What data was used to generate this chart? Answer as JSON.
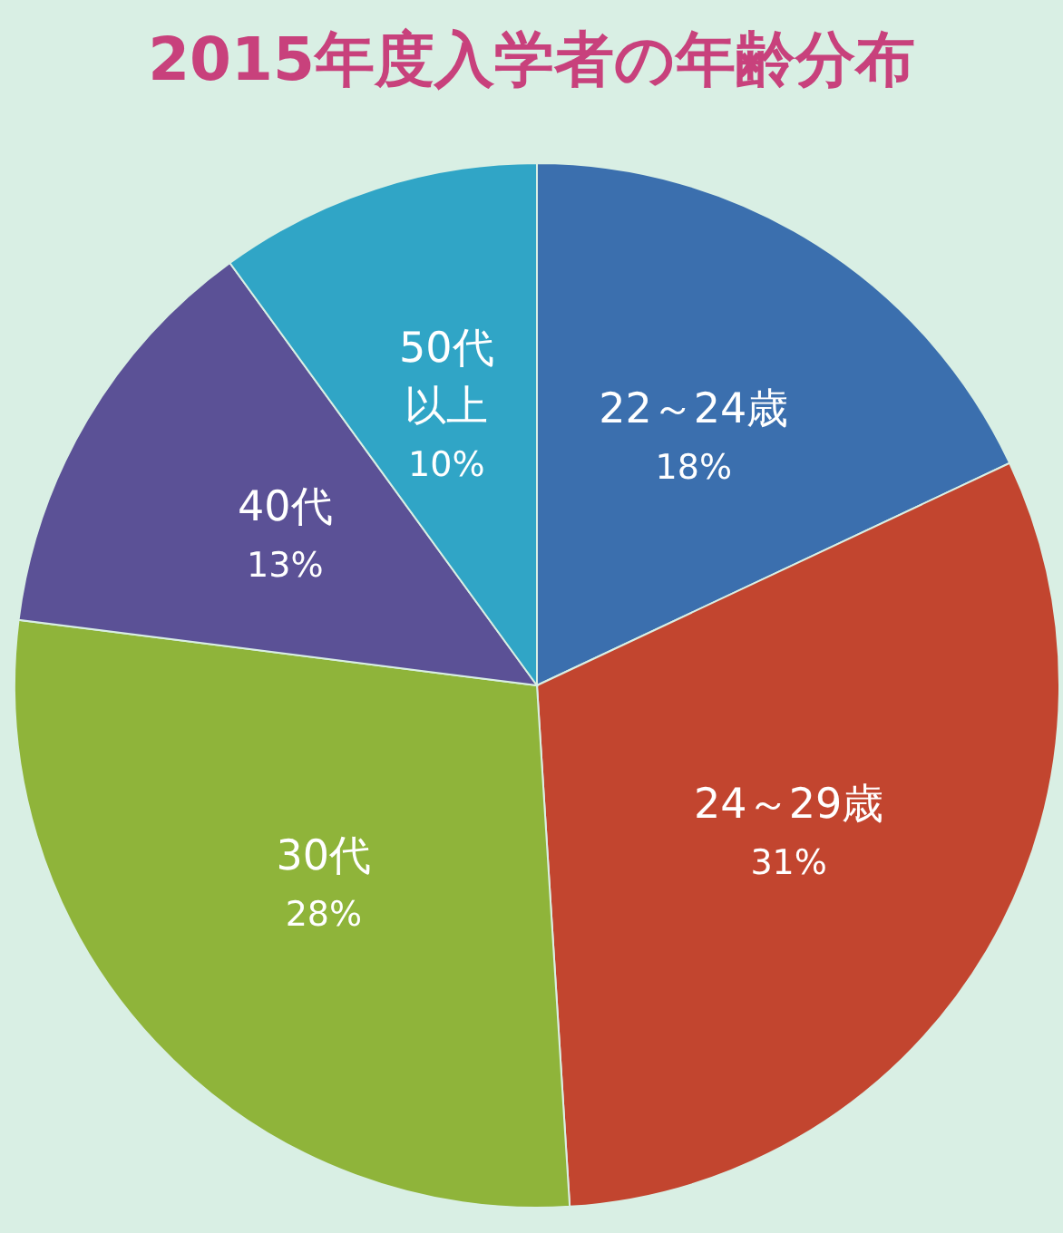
{
  "chart_data": {
    "type": "pie",
    "title": "2015年度入学者の年齢分布",
    "categories": [
      "22～24歳",
      "24～29歳",
      "30代",
      "40代",
      "50代以上"
    ],
    "values": [
      18,
      31,
      28,
      13,
      10
    ],
    "value_labels": [
      "18%",
      "31%",
      "28%",
      "13%",
      "10%"
    ],
    "colors": [
      "#3b6fae",
      "#c2452f",
      "#8fb43a",
      "#5b5196",
      "#30a5c6"
    ]
  }
}
